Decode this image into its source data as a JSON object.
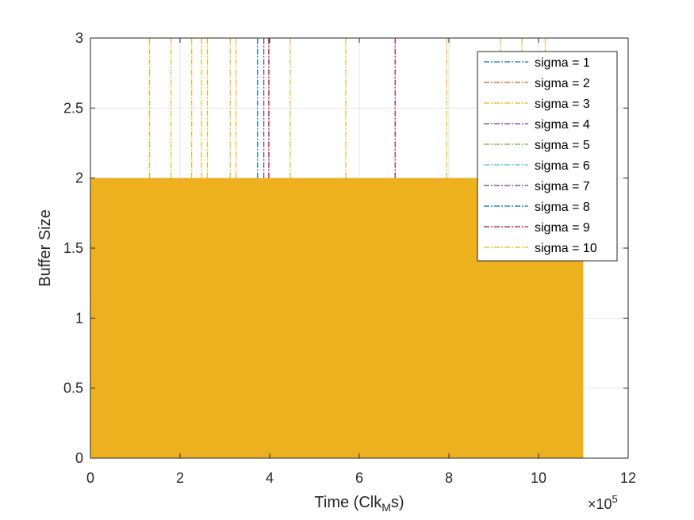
{
  "chart_data": {
    "type": "line",
    "title": "",
    "xlabel_main": "Time (Clk",
    "xlabel_sub": "M",
    "xlabel_tail": "s)",
    "ylabel": "Buffer Size",
    "xlim": [
      0,
      1200000
    ],
    "ylim": [
      0,
      3
    ],
    "x_ticks": [
      0,
      200000,
      400000,
      600000,
      800000,
      1000000,
      1200000
    ],
    "x_tick_labels": [
      "0",
      "2",
      "4",
      "6",
      "8",
      "10",
      "12"
    ],
    "x_exponent_base": "×10",
    "x_exponent_power": "5",
    "y_ticks": [
      0,
      0.5,
      1,
      1.5,
      2,
      2.5,
      3
    ],
    "y_tick_labels": [
      "0",
      "0.5",
      "1",
      "1.5",
      "2",
      "2.5",
      "3"
    ],
    "grid": true,
    "legend_position": "top-right",
    "fill_region": {
      "x_end": 1100000,
      "y_top": 2,
      "color": "#EDB120"
    },
    "series": [
      {
        "name": "sigma = 1",
        "color": "#0072BD",
        "line_style": "dash-dot",
        "spikes": [
          373000
        ]
      },
      {
        "name": "sigma = 2",
        "color": "#D95319",
        "line_style": "dash-dot",
        "spikes": []
      },
      {
        "name": "sigma = 3",
        "color": "#EDB120",
        "line_style": "dash-dot",
        "spikes": [
          132000,
          180000,
          226000,
          248000,
          261000,
          312000,
          325000,
          446000,
          570000,
          795000,
          915000,
          963000,
          1015000
        ]
      },
      {
        "name": "sigma = 4",
        "color": "#7E2F8E",
        "line_style": "dash-dot",
        "spikes": [
          387000
        ]
      },
      {
        "name": "sigma = 5",
        "color": "#77AC30",
        "line_style": "dash-dot",
        "spikes": []
      },
      {
        "name": "sigma = 6",
        "color": "#4DBEEE",
        "line_style": "dash-dot",
        "spikes": []
      },
      {
        "name": "sigma = 7",
        "color": "#7E2F8E",
        "line_style": "dash-dot",
        "spikes": []
      },
      {
        "name": "sigma = 8",
        "color": "#0072BD",
        "line_style": "dash-dot",
        "spikes": []
      },
      {
        "name": "sigma = 9",
        "color": "#A2142F",
        "line_style": "dash-dot",
        "spikes": [
          398000,
          680000
        ]
      },
      {
        "name": "sigma = 10",
        "color": "#EDB120",
        "line_style": "dash-dot",
        "spikes": []
      }
    ]
  }
}
